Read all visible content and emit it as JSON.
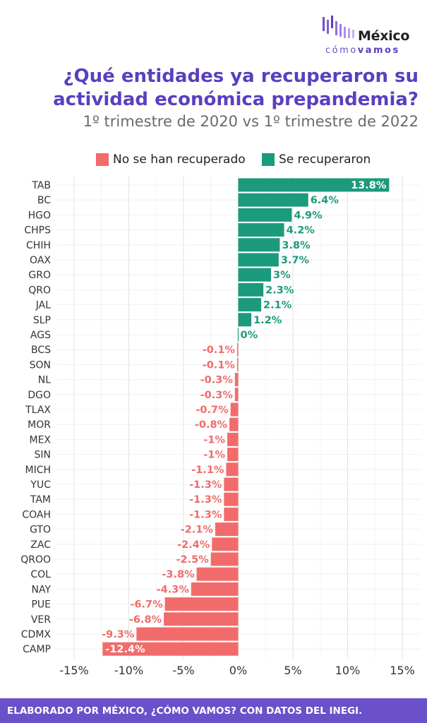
{
  "brand": {
    "name_top": "México",
    "name_bottom_light": "cómo",
    "name_bottom_bold": "vamos",
    "accent": "#5a3fc0"
  },
  "header": {
    "title_line1": "¿Qué entidades ya recuperaron su",
    "title_line2": "actividad económica prepandemia?",
    "subtitle": "1º trimestre de 2020 vs 1º trimestre de 2022"
  },
  "chart_data": {
    "type": "bar",
    "orientation": "horizontal",
    "title": "¿Qué entidades ya recuperaron su actividad económica prepandemia?",
    "subtitle": "1º trimestre de 2020 vs 1º trimestre de 2022",
    "xlabel": "",
    "ylabel": "",
    "xlim": [
      -15,
      15
    ],
    "xticks": [
      -15,
      -10,
      -5,
      0,
      5,
      10,
      15
    ],
    "xtick_labels": [
      "-15%",
      "-10%",
      "-5%",
      "0%",
      "5%",
      "10%",
      "15%"
    ],
    "grid": true,
    "legend_position": "top",
    "legend": [
      {
        "label": "No se han recuperado",
        "color": "#f26b6b"
      },
      {
        "label": "Se recuperaron",
        "color": "#1c9a7c"
      }
    ],
    "categories": [
      "TAB",
      "BC",
      "HGO",
      "CHPS",
      "CHIH",
      "OAX",
      "GRO",
      "QRO",
      "JAL",
      "SLP",
      "AGS",
      "BCS",
      "SON",
      "NL",
      "DGO",
      "TLAX",
      "MOR",
      "MEX",
      "SIN",
      "MICH",
      "YUC",
      "TAM",
      "COAH",
      "GTO",
      "ZAC",
      "QROO",
      "COL",
      "NAY",
      "PUE",
      "VER",
      "CDMX",
      "CAMP"
    ],
    "values": [
      13.8,
      6.4,
      4.9,
      4.2,
      3.8,
      3.7,
      3,
      2.3,
      2.1,
      1.2,
      0,
      -0.1,
      -0.1,
      -0.3,
      -0.3,
      -0.7,
      -0.8,
      -1,
      -1,
      -1.1,
      -1.3,
      -1.3,
      -1.3,
      -2.1,
      -2.4,
      -2.5,
      -3.8,
      -4.3,
      -6.7,
      -6.8,
      -9.3,
      -12.4
    ],
    "labels": [
      "13.8%",
      "6.4%",
      "4.9%",
      "4.2%",
      "3.8%",
      "3.7%",
      "3%",
      "2.3%",
      "2.1%",
      "1.2%",
      "0%",
      "-0.1%",
      "-0.1%",
      "-0.3%",
      "-0.3%",
      "-0.7%",
      "-0.8%",
      "-1%",
      "-1%",
      "-1.1%",
      "-1.3%",
      "-1.3%",
      "-1.3%",
      "-2.1%",
      "-2.4%",
      "-2.5%",
      "-3.8%",
      "-4.3%",
      "-6.7%",
      "-6.8%",
      "-9.3%",
      "-12.4%"
    ]
  },
  "footer": {
    "text": "ELABORADO POR MÉXICO, ¿CÓMO VAMOS? CON DATOS DEL INEGI.",
    "background": "#6a50c9"
  }
}
